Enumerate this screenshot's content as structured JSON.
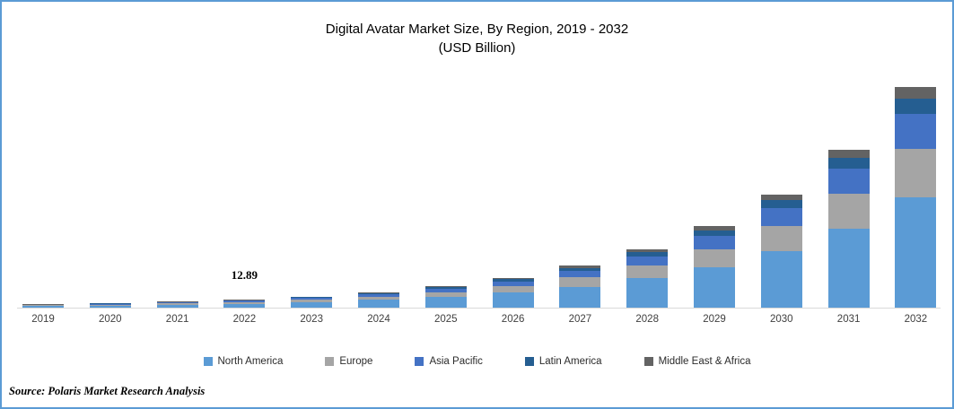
{
  "title": {
    "line1": "Digital Avatar Market Size, By Region, 2019 - 2032",
    "line2": "(USD Billion)"
  },
  "source": "Source: Polaris Market Research Analysis",
  "colors": {
    "frame_border": "#5B9BD5",
    "axis_line": "#D9D9D9",
    "tick_text": "#3F3F3F",
    "title_text": "#000000"
  },
  "chart_data": {
    "type": "bar",
    "stacked": true,
    "title": "Digital Avatar Market Size, By Region, 2019 - 2032 (USD Billion)",
    "xlabel": "",
    "ylabel": "USD Billion",
    "ylim": [
      0,
      360
    ],
    "grid": false,
    "legend_position": "bottom",
    "y_axis_visible": false,
    "categories": [
      "2019",
      "2020",
      "2021",
      "2022",
      "2023",
      "2024",
      "2025",
      "2026",
      "2027",
      "2028",
      "2029",
      "2030",
      "2031",
      "2032"
    ],
    "series": [
      {
        "name": "North America",
        "color": "#5B9BD5",
        "values": [
          2.62,
          3.54,
          4.78,
          6.45,
          8.99,
          12.52,
          17.45,
          24.33,
          33.91,
          47.26,
          65.87,
          91.81,
          127.96,
          178.31
        ]
      },
      {
        "name": "Europe",
        "color": "#A5A5A5",
        "values": [
          1.15,
          1.56,
          2.1,
          2.84,
          3.95,
          5.51,
          7.68,
          10.7,
          14.92,
          20.79,
          28.98,
          40.39,
          56.3,
          78.46
        ]
      },
      {
        "name": "Asia Pacific",
        "color": "#4472C4",
        "values": [
          0.84,
          1.13,
          1.53,
          2.06,
          2.88,
          4.01,
          5.58,
          7.78,
          10.85,
          15.12,
          21.08,
          29.38,
          40.95,
          57.06
        ]
      },
      {
        "name": "Latin America",
        "color": "#255E91",
        "values": [
          0.37,
          0.49,
          0.67,
          0.9,
          1.26,
          1.75,
          2.44,
          3.41,
          4.75,
          6.62,
          9.22,
          12.85,
          17.91,
          24.96
        ]
      },
      {
        "name": "Middle East & Africa",
        "color": "#636363",
        "values": [
          0.26,
          0.35,
          0.48,
          0.64,
          0.9,
          1.25,
          1.75,
          2.43,
          3.39,
          4.73,
          6.59,
          9.18,
          12.8,
          17.83
        ]
      }
    ],
    "totals": [
      5.24,
      7.07,
      9.56,
      12.89,
      17.98,
      25.04,
      34.9,
      48.65,
      67.82,
      94.52,
      131.74,
      183.61,
      255.92,
      356.62
    ],
    "data_labels": [
      {
        "category": "2022",
        "text": "12.89"
      }
    ]
  }
}
